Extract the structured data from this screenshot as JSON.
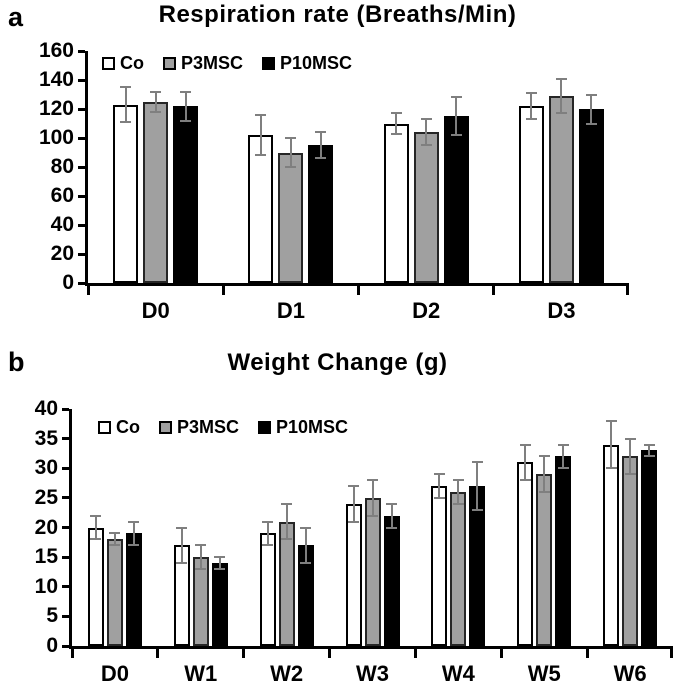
{
  "figure": {
    "background": "#ffffff",
    "text_color": "#000000",
    "axis_color": "#000000",
    "error_bar_color": "#7f7f7f"
  },
  "chart_data": [
    {
      "type": "bar",
      "panel_label": "a",
      "title": "Respiration rate (Breaths/Min)",
      "xlabel": "",
      "ylabel": "",
      "categories": [
        "D0",
        "D1",
        "D2",
        "D3"
      ],
      "series": [
        {
          "name": "Co",
          "fill": "#ffffff",
          "stroke": "#000000",
          "values": [
            123,
            102,
            110,
            122
          ],
          "errors": [
            12,
            14,
            7,
            9
          ]
        },
        {
          "name": "P3MSC",
          "fill": "#a0a0a0",
          "stroke": "#262626",
          "values": [
            125,
            90,
            104,
            129
          ],
          "errors": [
            7,
            10,
            9,
            12
          ]
        },
        {
          "name": "P10MSC",
          "fill": "#000000",
          "stroke": "#000000",
          "values": [
            122,
            95,
            115,
            120
          ],
          "errors": [
            10,
            9,
            13,
            10
          ]
        }
      ],
      "ylim": [
        0,
        160
      ],
      "ystep": 20,
      "grid": false,
      "legend": [
        "Co",
        "P3MSC",
        "P10MSC"
      ],
      "legend_position": "top-left"
    },
    {
      "type": "bar",
      "panel_label": "b",
      "title": "Weight Change (g)",
      "xlabel": "",
      "ylabel": "",
      "categories": [
        "D0",
        "W1",
        "W2",
        "W3",
        "W4",
        "W5",
        "W6"
      ],
      "series": [
        {
          "name": "Co",
          "fill": "#ffffff",
          "stroke": "#000000",
          "values": [
            20,
            17,
            19,
            24,
            27,
            31,
            34
          ],
          "errors": [
            2,
            3,
            2,
            3,
            2,
            3,
            4
          ]
        },
        {
          "name": "P3MSC",
          "fill": "#a0a0a0",
          "stroke": "#262626",
          "values": [
            18,
            15,
            21,
            25,
            26,
            29,
            32
          ],
          "errors": [
            1,
            2,
            3,
            3,
            2,
            3,
            3
          ]
        },
        {
          "name": "P10MSC",
          "fill": "#000000",
          "stroke": "#000000",
          "values": [
            19,
            14,
            17,
            22,
            27,
            32,
            33
          ],
          "errors": [
            2,
            1,
            3,
            2,
            4,
            2,
            1
          ]
        }
      ],
      "ylim": [
        0,
        40
      ],
      "ystep": 5,
      "grid": false,
      "legend": [
        "Co",
        "P3MSC",
        "P10MSC"
      ],
      "legend_position": "top-left"
    }
  ]
}
